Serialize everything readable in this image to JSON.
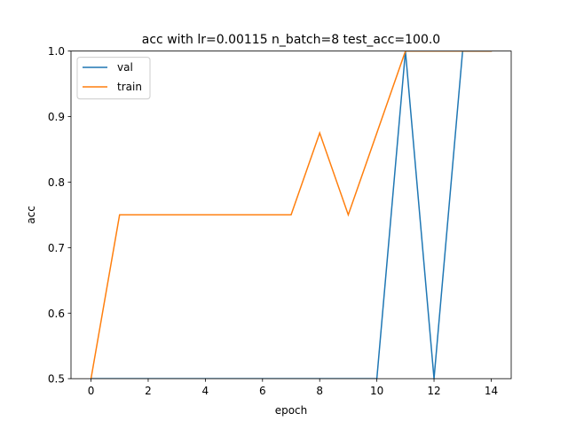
{
  "chart_data": {
    "type": "line",
    "title": "acc with lr=0.00115 n_batch=8 test_acc=100.0",
    "xlabel": "epoch",
    "ylabel": "acc",
    "xlim": [
      -0.7,
      14.7
    ],
    "ylim": [
      0.5,
      1.0
    ],
    "xticks": [
      0,
      2,
      4,
      6,
      8,
      10,
      12,
      14
    ],
    "yticks": [
      0.5,
      0.6,
      0.7,
      0.8,
      0.9,
      1.0
    ],
    "xtick_labels": [
      "0",
      "2",
      "4",
      "6",
      "8",
      "10",
      "12",
      "14"
    ],
    "ytick_labels": [
      "0.5",
      "0.6",
      "0.7",
      "0.8",
      "0.9",
      "1.0"
    ],
    "grid": false,
    "legend_position": "upper-left",
    "series": [
      {
        "name": "val",
        "color": "#1f77b4",
        "x": [
          0,
          1,
          2,
          3,
          4,
          5,
          6,
          7,
          8,
          9,
          10,
          11,
          12,
          13,
          14
        ],
        "y": [
          0.5,
          0.5,
          0.5,
          0.5,
          0.5,
          0.5,
          0.5,
          0.5,
          0.5,
          0.5,
          0.5,
          1.0,
          0.5,
          1.0,
          1.0
        ]
      },
      {
        "name": "train",
        "color": "#ff7f0e",
        "x": [
          0,
          1,
          2,
          3,
          4,
          5,
          6,
          7,
          8,
          9,
          10,
          11,
          12,
          13,
          14
        ],
        "y": [
          0.5,
          0.75,
          0.75,
          0.75,
          0.75,
          0.75,
          0.75,
          0.75,
          0.875,
          0.75,
          0.875,
          1.0,
          1.0,
          1.0,
          1.0
        ]
      }
    ]
  }
}
